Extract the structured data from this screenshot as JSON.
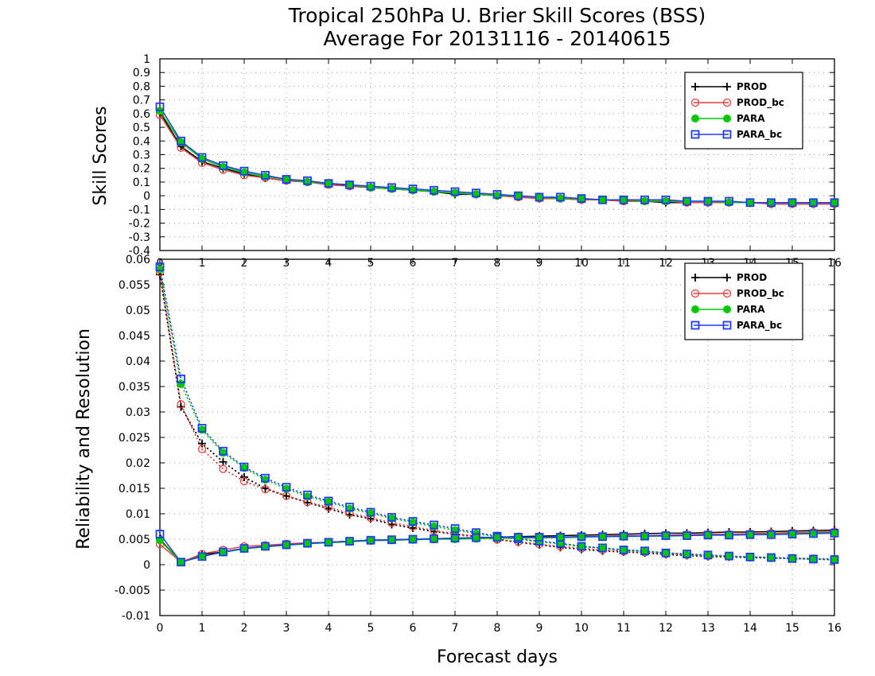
{
  "title": {
    "line1": "Tropical 250hPa U. Brier Skill Scores (BSS)",
    "line2": "Average For 20131116 - 20140615"
  },
  "colors": {
    "PROD": "#000000",
    "PROD_bc": "#e8403c",
    "PARA": "#00c800",
    "PARA_bc": "#1e3cff",
    "grid": "#999999"
  },
  "chart_data": [
    {
      "type": "line",
      "panel": "top",
      "ylabel": "Skill Scores",
      "xlabel": "",
      "xlim": [
        0,
        16
      ],
      "ylim": [
        -0.4,
        1
      ],
      "yticks": [
        -0.4,
        -0.3,
        -0.2,
        -0.1,
        0,
        0.1,
        0.2,
        0.3,
        0.4,
        0.5,
        0.6,
        0.7,
        0.8,
        0.9,
        1
      ],
      "yticklabels": [
        "-0.4",
        "-0.3",
        "-0.2",
        "-0.1",
        "0",
        "0.1",
        "0.2",
        "0.3",
        "0.4",
        "0.5",
        "0.6",
        "0.7",
        "0.8",
        "0.9",
        "1"
      ],
      "xticks": [
        0,
        1,
        2,
        3,
        4,
        5,
        6,
        7,
        8,
        9,
        10,
        11,
        12,
        13,
        14,
        15,
        16
      ],
      "xticklabels": [
        "0",
        "1",
        "2",
        "3",
        "4",
        "5",
        "6",
        "7",
        "8",
        "9",
        "10",
        "11",
        "12",
        "13",
        "14",
        "15",
        "16"
      ],
      "grid": true,
      "legend_position": "top-right",
      "legend": [
        "PROD",
        "PROD_bc",
        "PARA",
        "PARA_bc"
      ],
      "x": [
        0,
        0.5,
        1,
        1.5,
        2,
        2.5,
        3,
        3.5,
        4,
        4.5,
        5,
        5.5,
        6,
        6.5,
        7,
        7.5,
        8,
        8.5,
        9,
        9.5,
        10,
        10.5,
        11,
        11.5,
        12,
        12.5,
        13,
        13.5,
        14,
        14.5,
        15,
        15.5,
        16
      ],
      "series": [
        {
          "name": "PROD",
          "marker": "plus",
          "line": "solid",
          "values": [
            0.61,
            0.36,
            0.25,
            0.2,
            0.16,
            0.13,
            0.11,
            0.1,
            0.09,
            0.07,
            0.06,
            0.05,
            0.04,
            0.03,
            0.01,
            0.01,
            0,
            -0.01,
            -0.02,
            -0.02,
            -0.03,
            -0.03,
            -0.04,
            -0.04,
            -0.05,
            -0.05,
            -0.05,
            -0.05,
            -0.05,
            -0.06,
            -0.06,
            -0.06,
            -0.06
          ]
        },
        {
          "name": "PROD_bc",
          "marker": "circle",
          "line": "solid",
          "values": [
            0.59,
            0.35,
            0.24,
            0.19,
            0.15,
            0.13,
            0.11,
            0.1,
            0.08,
            0.07,
            0.06,
            0.05,
            0.04,
            0.03,
            0.02,
            0.01,
            0,
            -0.01,
            -0.02,
            -0.02,
            -0.03,
            -0.03,
            -0.04,
            -0.04,
            -0.04,
            -0.05,
            -0.05,
            -0.05,
            -0.05,
            -0.06,
            -0.06,
            -0.06,
            -0.06
          ]
        },
        {
          "name": "PARA",
          "marker": "dot",
          "line": "solid",
          "values": [
            0.62,
            0.39,
            0.27,
            0.21,
            0.17,
            0.14,
            0.12,
            0.1,
            0.09,
            0.08,
            0.06,
            0.05,
            0.04,
            0.03,
            0.02,
            0.01,
            0,
            0,
            -0.01,
            -0.02,
            -0.02,
            -0.03,
            -0.03,
            -0.04,
            -0.04,
            -0.04,
            -0.04,
            -0.05,
            -0.05,
            -0.05,
            -0.05,
            -0.05,
            -0.05
          ]
        },
        {
          "name": "PARA_bc",
          "marker": "square",
          "line": "solid",
          "values": [
            0.65,
            0.4,
            0.28,
            0.22,
            0.18,
            0.15,
            0.12,
            0.11,
            0.09,
            0.08,
            0.07,
            0.06,
            0.05,
            0.04,
            0.03,
            0.02,
            0.01,
            0,
            -0.01,
            -0.01,
            -0.02,
            -0.03,
            -0.03,
            -0.03,
            -0.03,
            -0.04,
            -0.04,
            -0.04,
            -0.05,
            -0.05,
            -0.05,
            -0.05,
            -0.05
          ]
        }
      ]
    },
    {
      "type": "line",
      "panel": "bottom",
      "ylabel": "Reliability and Resolution",
      "xlabel": "Forecast days",
      "xlim": [
        0,
        16
      ],
      "ylim": [
        -0.01,
        0.06
      ],
      "yticks": [
        -0.01,
        -0.005,
        0,
        0.005,
        0.01,
        0.015,
        0.02,
        0.025,
        0.03,
        0.035,
        0.04,
        0.045,
        0.05,
        0.055,
        0.06
      ],
      "yticklabels": [
        "-0.01",
        "-0.005",
        "0",
        "0.005",
        "0.01",
        "0.015",
        "0.02",
        "0.025",
        "0.03",
        "0.035",
        "0.04",
        "0.045",
        "0.05",
        "0.055",
        "0.06"
      ],
      "xticks": [
        0,
        1,
        2,
        3,
        4,
        5,
        6,
        7,
        8,
        9,
        10,
        11,
        12,
        13,
        14,
        15,
        16
      ],
      "xticklabels": [
        "0",
        "1",
        "2",
        "3",
        "4",
        "5",
        "6",
        "7",
        "8",
        "9",
        "10",
        "11",
        "12",
        "13",
        "14",
        "15",
        "16"
      ],
      "grid": true,
      "legend_position": "top-right",
      "legend": [
        "PROD",
        "PROD_bc",
        "PARA",
        "PARA_bc"
      ],
      "x": [
        0,
        0.5,
        1,
        1.5,
        2,
        2.5,
        3,
        3.5,
        4,
        4.5,
        5,
        5.5,
        6,
        6.5,
        7,
        7.5,
        8,
        8.5,
        9,
        9.5,
        10,
        10.5,
        11,
        11.5,
        12,
        12.5,
        13,
        13.5,
        14,
        14.5,
        15,
        15.5,
        16
      ],
      "series": [
        {
          "name": "PROD",
          "group": "resolution",
          "marker": "plus",
          "line": "dotted",
          "values": [
            0.057,
            0.031,
            0.0238,
            0.0202,
            0.0172,
            0.015,
            0.0135,
            0.0122,
            0.011,
            0.0098,
            0.009,
            0.0079,
            0.0072,
            0.0065,
            0.006,
            0.0055,
            0.005,
            0.0044,
            0.0039,
            0.0034,
            0.003,
            0.0027,
            0.0025,
            0.0023,
            0.002,
            0.0018,
            0.0016,
            0.0015,
            0.0014,
            0.0013,
            0.0012,
            0.0011,
            0.001
          ]
        },
        {
          "name": "PROD_bc",
          "group": "resolution",
          "marker": "circle",
          "line": "dotted",
          "values": [
            0.0575,
            0.0315,
            0.0227,
            0.0188,
            0.0164,
            0.0148,
            0.0135,
            0.0123,
            0.0113,
            0.0101,
            0.0092,
            0.0082,
            0.0075,
            0.0067,
            0.0061,
            0.0056,
            0.0049,
            0.0045,
            0.004,
            0.0036,
            0.0032,
            0.0029,
            0.0026,
            0.0024,
            0.0021,
            0.0019,
            0.0017,
            0.0016,
            0.0015,
            0.0014,
            0.0013,
            0.0012,
            0.0011
          ]
        },
        {
          "name": "PARA",
          "group": "resolution",
          "marker": "dot",
          "line": "dotted",
          "values": [
            0.058,
            0.0355,
            0.0265,
            0.022,
            0.019,
            0.0167,
            0.0149,
            0.0134,
            0.0123,
            0.011,
            0.0101,
            0.0091,
            0.0083,
            0.0075,
            0.0068,
            0.0061,
            0.0055,
            0.005,
            0.0045,
            0.0041,
            0.0036,
            0.0032,
            0.0029,
            0.0026,
            0.0023,
            0.002,
            0.0018,
            0.0016,
            0.0015,
            0.0014,
            0.0012,
            0.0011,
            0.001
          ]
        },
        {
          "name": "PARA_bc",
          "group": "resolution",
          "marker": "square",
          "line": "dotted",
          "values": [
            0.0585,
            0.0365,
            0.0268,
            0.0223,
            0.0192,
            0.017,
            0.0152,
            0.0137,
            0.0125,
            0.0113,
            0.0103,
            0.0093,
            0.0085,
            0.0078,
            0.0071,
            0.0063,
            0.0056,
            0.0051,
            0.0046,
            0.0042,
            0.0036,
            0.0033,
            0.0029,
            0.0027,
            0.0023,
            0.0021,
            0.0019,
            0.0017,
            0.0015,
            0.0014,
            0.0012,
            0.0011,
            0.001
          ]
        },
        {
          "name": "PROD",
          "group": "reliability",
          "marker": "plus",
          "line": "solid",
          "values": [
            0.005,
            0.0005,
            0.002,
            0.0025,
            0.0032,
            0.0036,
            0.0039,
            0.0042,
            0.0044,
            0.0046,
            0.0048,
            0.0049,
            0.005,
            0.0051,
            0.0052,
            0.0053,
            0.0054,
            0.0055,
            0.0056,
            0.0057,
            0.0058,
            0.0059,
            0.006,
            0.0061,
            0.0062,
            0.0062,
            0.0063,
            0.0064,
            0.0064,
            0.0065,
            0.0066,
            0.0067,
            0.0068
          ]
        },
        {
          "name": "PROD_bc",
          "group": "reliability",
          "marker": "circle",
          "line": "solid",
          "values": [
            0.004,
            0.0005,
            0.0021,
            0.0029,
            0.0036,
            0.0038,
            0.0041,
            0.0043,
            0.0044,
            0.0046,
            0.0047,
            0.0048,
            0.0049,
            0.005,
            0.0051,
            0.0052,
            0.0052,
            0.0053,
            0.0054,
            0.0054,
            0.0055,
            0.0056,
            0.0057,
            0.0057,
            0.0058,
            0.0059,
            0.006,
            0.006,
            0.0061,
            0.0062,
            0.0063,
            0.0064,
            0.0065
          ]
        },
        {
          "name": "PARA",
          "group": "reliability",
          "marker": "dot",
          "line": "solid",
          "values": [
            0.0048,
            0.0005,
            0.0017,
            0.0024,
            0.0031,
            0.0035,
            0.0038,
            0.0041,
            0.0043,
            0.0045,
            0.0047,
            0.0048,
            0.0049,
            0.005,
            0.005,
            0.0051,
            0.0052,
            0.0052,
            0.0053,
            0.0053,
            0.0054,
            0.0055,
            0.0055,
            0.0056,
            0.0056,
            0.0057,
            0.0058,
            0.0058,
            0.0059,
            0.006,
            0.0061,
            0.0062,
            0.0063
          ]
        },
        {
          "name": "PARA_bc",
          "group": "reliability",
          "marker": "square",
          "line": "solid",
          "values": [
            0.006,
            0.0005,
            0.0016,
            0.0025,
            0.0032,
            0.0036,
            0.0039,
            0.0042,
            0.0044,
            0.0046,
            0.0048,
            0.0049,
            0.005,
            0.0051,
            0.0052,
            0.0053,
            0.0054,
            0.0054,
            0.0054,
            0.0054,
            0.0055,
            0.0055,
            0.0056,
            0.0056,
            0.0057,
            0.0057,
            0.0058,
            0.0058,
            0.0059,
            0.0059,
            0.006,
            0.0061,
            0.0062
          ]
        }
      ]
    }
  ]
}
